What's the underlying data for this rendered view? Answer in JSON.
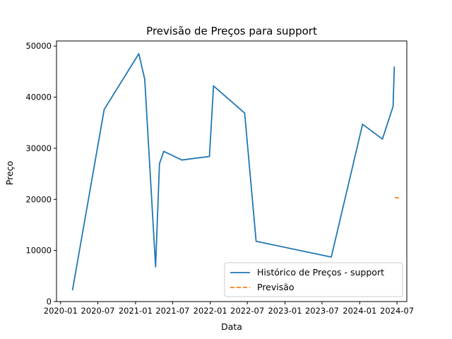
{
  "chart_data": {
    "type": "line",
    "title": "Previsão de Preços para support",
    "xlabel": "Data",
    "ylabel": "Preço",
    "xlim": [
      "2019-12-12",
      "2024-08-18"
    ],
    "ylim": [
      0,
      51000
    ],
    "x_ticks": [
      {
        "date": "2020-01-01",
        "label": "2020-01"
      },
      {
        "date": "2020-07-01",
        "label": "2020-07"
      },
      {
        "date": "2021-01-01",
        "label": "2021-01"
      },
      {
        "date": "2021-07-01",
        "label": "2021-07"
      },
      {
        "date": "2022-01-01",
        "label": "2022-01"
      },
      {
        "date": "2022-07-01",
        "label": "2022-07"
      },
      {
        "date": "2023-01-01",
        "label": "2023-01"
      },
      {
        "date": "2023-07-01",
        "label": "2023-07"
      },
      {
        "date": "2024-01-01",
        "label": "2024-01"
      },
      {
        "date": "2024-07-01",
        "label": "2024-07"
      }
    ],
    "y_ticks": [
      0,
      10000,
      20000,
      30000,
      40000,
      50000
    ],
    "y_tick_labels": [
      "0",
      "10000",
      "20000",
      "30000",
      "40000",
      "50000"
    ],
    "grid": false,
    "legend_position": "lower-right",
    "series": [
      {
        "name": "Histórico de Preços - support",
        "color": "#1f77b4",
        "style": "solid",
        "points": [
          {
            "x": "2020-02-28",
            "y": 2200
          },
          {
            "x": "2020-08-01",
            "y": 37600
          },
          {
            "x": "2021-01-17",
            "y": 48500
          },
          {
            "x": "2021-02-15",
            "y": 43500
          },
          {
            "x": "2021-04-09",
            "y": 6800
          },
          {
            "x": "2021-04-28",
            "y": 27000
          },
          {
            "x": "2021-05-19",
            "y": 29400
          },
          {
            "x": "2021-08-15",
            "y": 27700
          },
          {
            "x": "2021-12-28",
            "y": 28400
          },
          {
            "x": "2022-01-17",
            "y": 42200
          },
          {
            "x": "2022-06-18",
            "y": 36900
          },
          {
            "x": "2022-08-13",
            "y": 11800
          },
          {
            "x": "2023-08-15",
            "y": 8700
          },
          {
            "x": "2024-01-15",
            "y": 34700
          },
          {
            "x": "2024-04-21",
            "y": 31800
          },
          {
            "x": "2024-06-12",
            "y": 38200
          },
          {
            "x": "2024-06-18",
            "y": 46000
          }
        ]
      },
      {
        "name": "Previsão",
        "color": "#ff7f0e",
        "style": "dashed",
        "points": [
          {
            "x": "2024-06-20",
            "y": 20400
          },
          {
            "x": "2024-07-12",
            "y": 20200
          }
        ]
      }
    ]
  }
}
